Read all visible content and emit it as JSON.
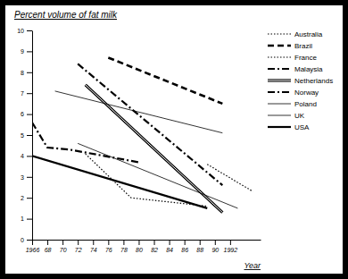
{
  "chart_data": {
    "type": "line",
    "title": "Percent volume of fat milk",
    "x_label": "Year",
    "xlim": [
      1966,
      1996
    ],
    "xticks": [
      1966,
      {
        "value": 1968,
        "label": "68"
      },
      {
        "value": 1970,
        "label": "70"
      },
      {
        "value": 1972,
        "label": "72"
      },
      {
        "value": 1974,
        "label": "74"
      },
      {
        "value": 1976,
        "label": "76"
      },
      {
        "value": 1978,
        "label": "78"
      },
      {
        "value": 1980,
        "label": "80"
      },
      {
        "value": 1982,
        "label": "82"
      },
      {
        "value": 1984,
        "label": "84"
      },
      {
        "value": 1986,
        "label": "86"
      },
      {
        "value": 1988,
        "label": "88"
      },
      {
        "value": 1990,
        "label": "90"
      },
      1992
    ],
    "ylim": [
      0,
      10
    ],
    "yticks": [
      0,
      1,
      2,
      3,
      4,
      5,
      6,
      7,
      8,
      9,
      10
    ],
    "legend": "right",
    "series": [
      {
        "name": "Australia",
        "color": "#000000",
        "line_style": "dotted",
        "x": [
          1989,
          1995
        ],
        "values": [
          3.6,
          2.3
        ]
      },
      {
        "name": "Brazil",
        "color": "#000000",
        "line_style": "dashed",
        "x": [
          1976,
          1991
        ],
        "values": [
          8.7,
          6.5
        ]
      },
      {
        "name": "France",
        "color": "#000000",
        "line_style": "dotted",
        "x": [
          1973,
          1979,
          1989
        ],
        "values": [
          4.1,
          2.0,
          1.6
        ]
      },
      {
        "name": "Malaysia",
        "color": "#000000",
        "line_style": "dashdot",
        "x": [
          1966,
          1968,
          1971,
          1977,
          1980
        ],
        "values": [
          5.6,
          4.4,
          4.3,
          3.9,
          3.7
        ]
      },
      {
        "name": "Netherlands",
        "color": "#000000",
        "line_style": "double",
        "x": [
          1973,
          1991
        ],
        "values": [
          7.4,
          1.3
        ]
      },
      {
        "name": "Norway",
        "color": "#000000",
        "line_style": "dashdot",
        "x": [
          1972,
          1991
        ],
        "values": [
          8.4,
          2.6
        ]
      },
      {
        "name": "Poland",
        "color": "#000000",
        "line_style": "thin",
        "x": [
          1969,
          1991
        ],
        "values": [
          7.1,
          5.1
        ]
      },
      {
        "name": "UK",
        "color": "#000000",
        "line_style": "thin",
        "x": [
          1972,
          1993
        ],
        "values": [
          4.6,
          1.5
        ]
      },
      {
        "name": "USA",
        "color": "#000000",
        "line_style": "solid",
        "x": [
          1966,
          1989
        ],
        "values": [
          4.0,
          1.5
        ]
      }
    ]
  }
}
